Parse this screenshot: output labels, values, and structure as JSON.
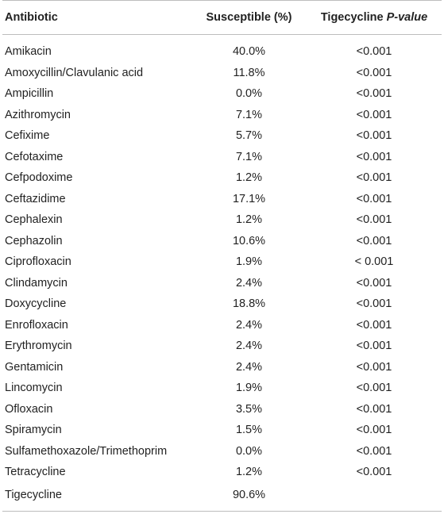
{
  "table": {
    "headers": {
      "antibiotic": "Antibiotic",
      "susceptible": "Susceptible (%)",
      "tigecycline_prefix": "Tigecycline ",
      "tigecycline_pvalue": "P-value"
    },
    "rows": [
      {
        "antibiotic": "Amikacin",
        "susceptible": "40.0%",
        "p_value": "<0.001"
      },
      {
        "antibiotic": "Amoxycillin/Clavulanic acid",
        "susceptible": "11.8%",
        "p_value": "<0.001"
      },
      {
        "antibiotic": "Ampicillin",
        "susceptible": "0.0%",
        "p_value": "<0.001"
      },
      {
        "antibiotic": "Azithromycin",
        "susceptible": "7.1%",
        "p_value": "<0.001"
      },
      {
        "antibiotic": "Cefixime",
        "susceptible": "5.7%",
        "p_value": "<0.001"
      },
      {
        "antibiotic": "Cefotaxime",
        "susceptible": "7.1%",
        "p_value": "<0.001"
      },
      {
        "antibiotic": "Cefpodoxime",
        "susceptible": "1.2%",
        "p_value": "<0.001"
      },
      {
        "antibiotic": "Ceftazidime",
        "susceptible": "17.1%",
        "p_value": "<0.001"
      },
      {
        "antibiotic": "Cephalexin",
        "susceptible": "1.2%",
        "p_value": "<0.001"
      },
      {
        "antibiotic": "Cephazolin",
        "susceptible": "10.6%",
        "p_value": "<0.001"
      },
      {
        "antibiotic": "Ciprofloxacin",
        "susceptible": "1.9%",
        "p_value": "< 0.001"
      },
      {
        "antibiotic": "Clindamycin",
        "susceptible": "2.4%",
        "p_value": "<0.001"
      },
      {
        "antibiotic": "Doxycycline",
        "susceptible": "18.8%",
        "p_value": "<0.001"
      },
      {
        "antibiotic": "Enrofloxacin",
        "susceptible": "2.4%",
        "p_value": "<0.001"
      },
      {
        "antibiotic": "Erythromycin",
        "susceptible": "2.4%",
        "p_value": "<0.001"
      },
      {
        "antibiotic": "Gentamicin",
        "susceptible": "2.4%",
        "p_value": "<0.001"
      },
      {
        "antibiotic": "Lincomycin",
        "susceptible": "1.9%",
        "p_value": "<0.001"
      },
      {
        "antibiotic": "Ofloxacin",
        "susceptible": "3.5%",
        "p_value": "<0.001"
      },
      {
        "antibiotic": "Spiramycin",
        "susceptible": "1.5%",
        "p_value": "<0.001"
      },
      {
        "antibiotic": "Sulfamethoxazole/Trimethoprim",
        "susceptible": "0.0%",
        "p_value": "<0.001"
      },
      {
        "antibiotic": "Tetracycline",
        "susceptible": "1.2%",
        "p_value": "<0.001"
      },
      {
        "antibiotic": "Tigecycline",
        "susceptible": "90.6%",
        "p_value": ""
      }
    ]
  }
}
